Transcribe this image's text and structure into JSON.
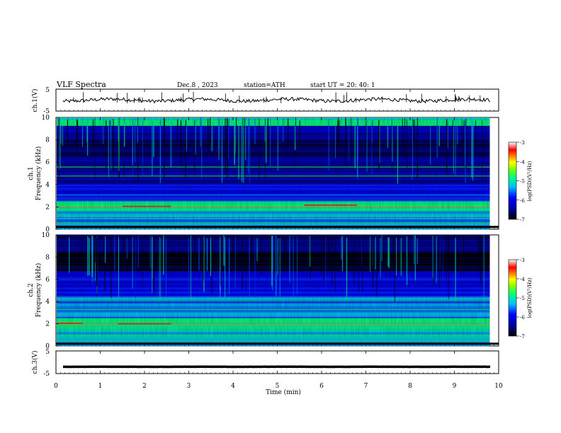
{
  "header": {
    "title": "VLF  Spectra",
    "date": "Dec.8  , 2023",
    "station": "station=ATH",
    "start_ut": "start  UT  =    20: 40: 1"
  },
  "chart_data": [
    {
      "type": "line",
      "name": "ch1-waveform",
      "ylabel": "ch.1(V)",
      "ylim": [
        -5,
        5
      ],
      "yticks": [
        "5",
        "-5"
      ],
      "approx_level": 0,
      "xlim": [
        0,
        10
      ]
    },
    {
      "type": "heatmap",
      "name": "ch1-spectrogram",
      "ylabel": "ch.1\nFrequency (kHz)",
      "ylim": [
        0,
        10
      ],
      "yticks": [
        "10",
        "8",
        "6",
        "4",
        "2",
        "0"
      ],
      "xlim": [
        0,
        10
      ],
      "data_extent_min": 9.8,
      "colorbar": {
        "label": "log(PSD)(V²/Hz)",
        "range": [
          -7,
          -3
        ],
        "ticks": [
          "-3",
          "-4",
          "-5",
          "-6",
          "-7"
        ]
      }
    },
    {
      "type": "heatmap",
      "name": "ch2-spectrogram",
      "ylabel": "ch.2\nFrequency (kHz)",
      "ylim": [
        0,
        10
      ],
      "yticks": [
        "10",
        "8",
        "6",
        "4",
        "2",
        "0"
      ],
      "xlim": [
        0,
        10
      ],
      "data_extent_min": 9.8,
      "colorbar": {
        "label": "log(PSD)(V²/Hz)",
        "range": [
          -7,
          -3
        ],
        "ticks": [
          "-3",
          "-4",
          "-5",
          "-6",
          "-7"
        ]
      }
    },
    {
      "type": "line",
      "name": "ch3-waveform",
      "ylabel": "ch.3(V)",
      "ylim": [
        -5,
        5
      ],
      "yticks": [
        "5",
        "-5"
      ],
      "approx_level": -2,
      "xlim": [
        0,
        10
      ]
    }
  ],
  "xaxis": {
    "label": "Time  (min)",
    "ticks": [
      "0",
      "1",
      "2",
      "3",
      "4",
      "5",
      "6",
      "7",
      "8",
      "9",
      "10"
    ]
  },
  "colors": {
    "background": "#ffffff",
    "axes": "#000000",
    "colormap": [
      "#000000",
      "#00008b",
      "#0000ff",
      "#00bfff",
      "#00ff7f",
      "#7fff00",
      "#ffff00",
      "#ff7f00",
      "#ff0000",
      "#ffffff"
    ]
  }
}
